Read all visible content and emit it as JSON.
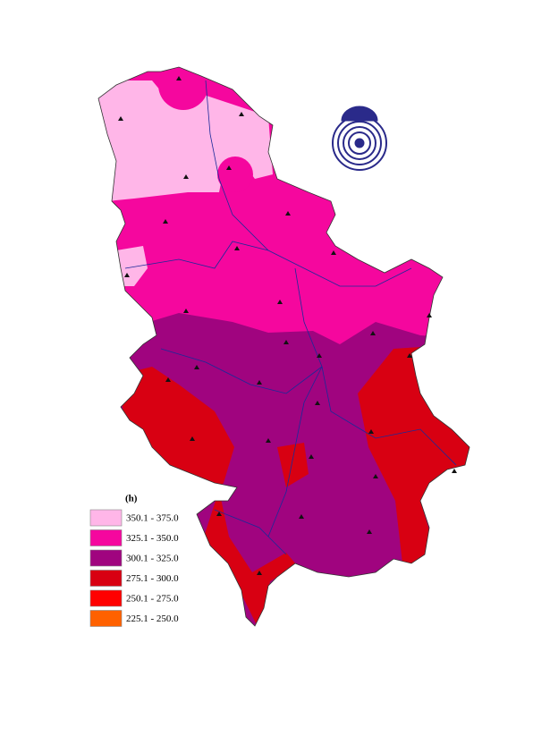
{
  "legend": {
    "title": "(h)",
    "items": [
      {
        "label": "350.1 - 375.0",
        "color": "#ffb6e8"
      },
      {
        "label": "325.1 - 350.0",
        "color": "#f5079e"
      },
      {
        "label": "300.1 - 325.0",
        "color": "#a0047f"
      },
      {
        "label": "275.1 - 300.0",
        "color": "#d80012"
      },
      {
        "label": "250.1 - 275.0",
        "color": "#ff0000"
      },
      {
        "label": "225.1 - 250.0",
        "color": "#ff6100"
      }
    ]
  }
}
